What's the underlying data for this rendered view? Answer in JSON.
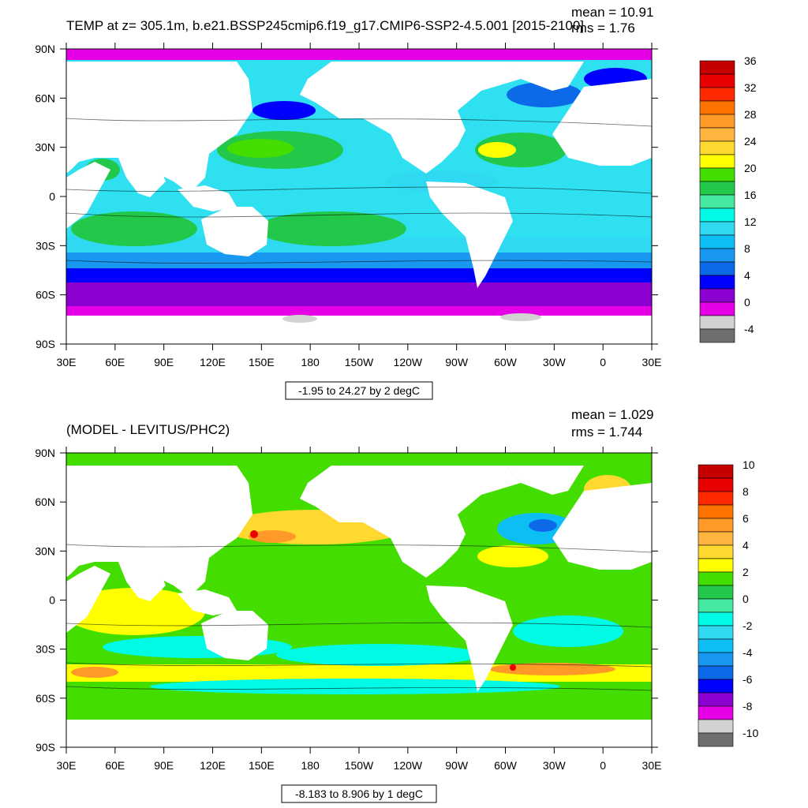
{
  "top_panel": {
    "title": "TEMP at z= 305.1m, b.e21.BSSP245cmip6.f19_g17.CMIP6-SSP2-4.5.001 [2015-2100]",
    "mean_label": "mean = 10.91",
    "rms_label": "rms = 1.76",
    "range_label": "-1.95 to 24.27 by 2 degC",
    "colorbar": {
      "tick_labels": [
        "36",
        "32",
        "28",
        "24",
        "20",
        "16",
        "12",
        "8",
        "4",
        "0",
        "-4"
      ],
      "colors": [
        "#c40000",
        "#e80000",
        "#ff2a00",
        "#ff7400",
        "#ff9a28",
        "#ffb440",
        "#ffd830",
        "#ffff00",
        "#44dd00",
        "#22c84a",
        "#44e8a0",
        "#00fae6",
        "#30d9f2",
        "#0dbef5",
        "#1898f0",
        "#0c6ae8",
        "#0000ff",
        "#8c00d2",
        "#e600e6",
        "#d2d2d2",
        "#6e6e6e"
      ]
    }
  },
  "bottom_panel": {
    "title": "(MODEL - LEVITUS/PHC2)",
    "mean_label": "mean = 1.029",
    "rms_label": "rms = 1.744",
    "range_label": "-8.183 to 8.906 by 1 degC",
    "colorbar": {
      "tick_labels": [
        "10",
        "8",
        "6",
        "4",
        "2",
        "0",
        "-2",
        "-4",
        "-6",
        "-8",
        "-10"
      ],
      "colors": [
        "#c40000",
        "#e80000",
        "#ff2a00",
        "#ff7400",
        "#ff9a28",
        "#ffb440",
        "#ffd830",
        "#ffff00",
        "#44dd00",
        "#22c84a",
        "#44e8a0",
        "#00fae6",
        "#30d9f2",
        "#0dbef5",
        "#1898f0",
        "#0c6ae8",
        "#0000ff",
        "#8c00d2",
        "#e600e6",
        "#d2d2d2",
        "#6e6e6e"
      ]
    }
  },
  "axes": {
    "lat_labels": [
      "90N",
      "60N",
      "30N",
      "0",
      "30S",
      "60S",
      "90S"
    ],
    "lon_labels": [
      "30E",
      "60E",
      "90E",
      "120E",
      "150E",
      "180",
      "150W",
      "120W",
      "90W",
      "60W",
      "30W",
      "0",
      "30E"
    ]
  },
  "map_colors": {
    "land": "#ffffff",
    "top_fill": "#2ee0f0",
    "top_warm": "#22c84a",
    "top_cold": "#8c00d2",
    "top_coldest": "#e600e6",
    "bottom_fill": "#44dd00",
    "bottom_warm": "#ffff00",
    "bottom_cool": "#00fae6"
  }
}
